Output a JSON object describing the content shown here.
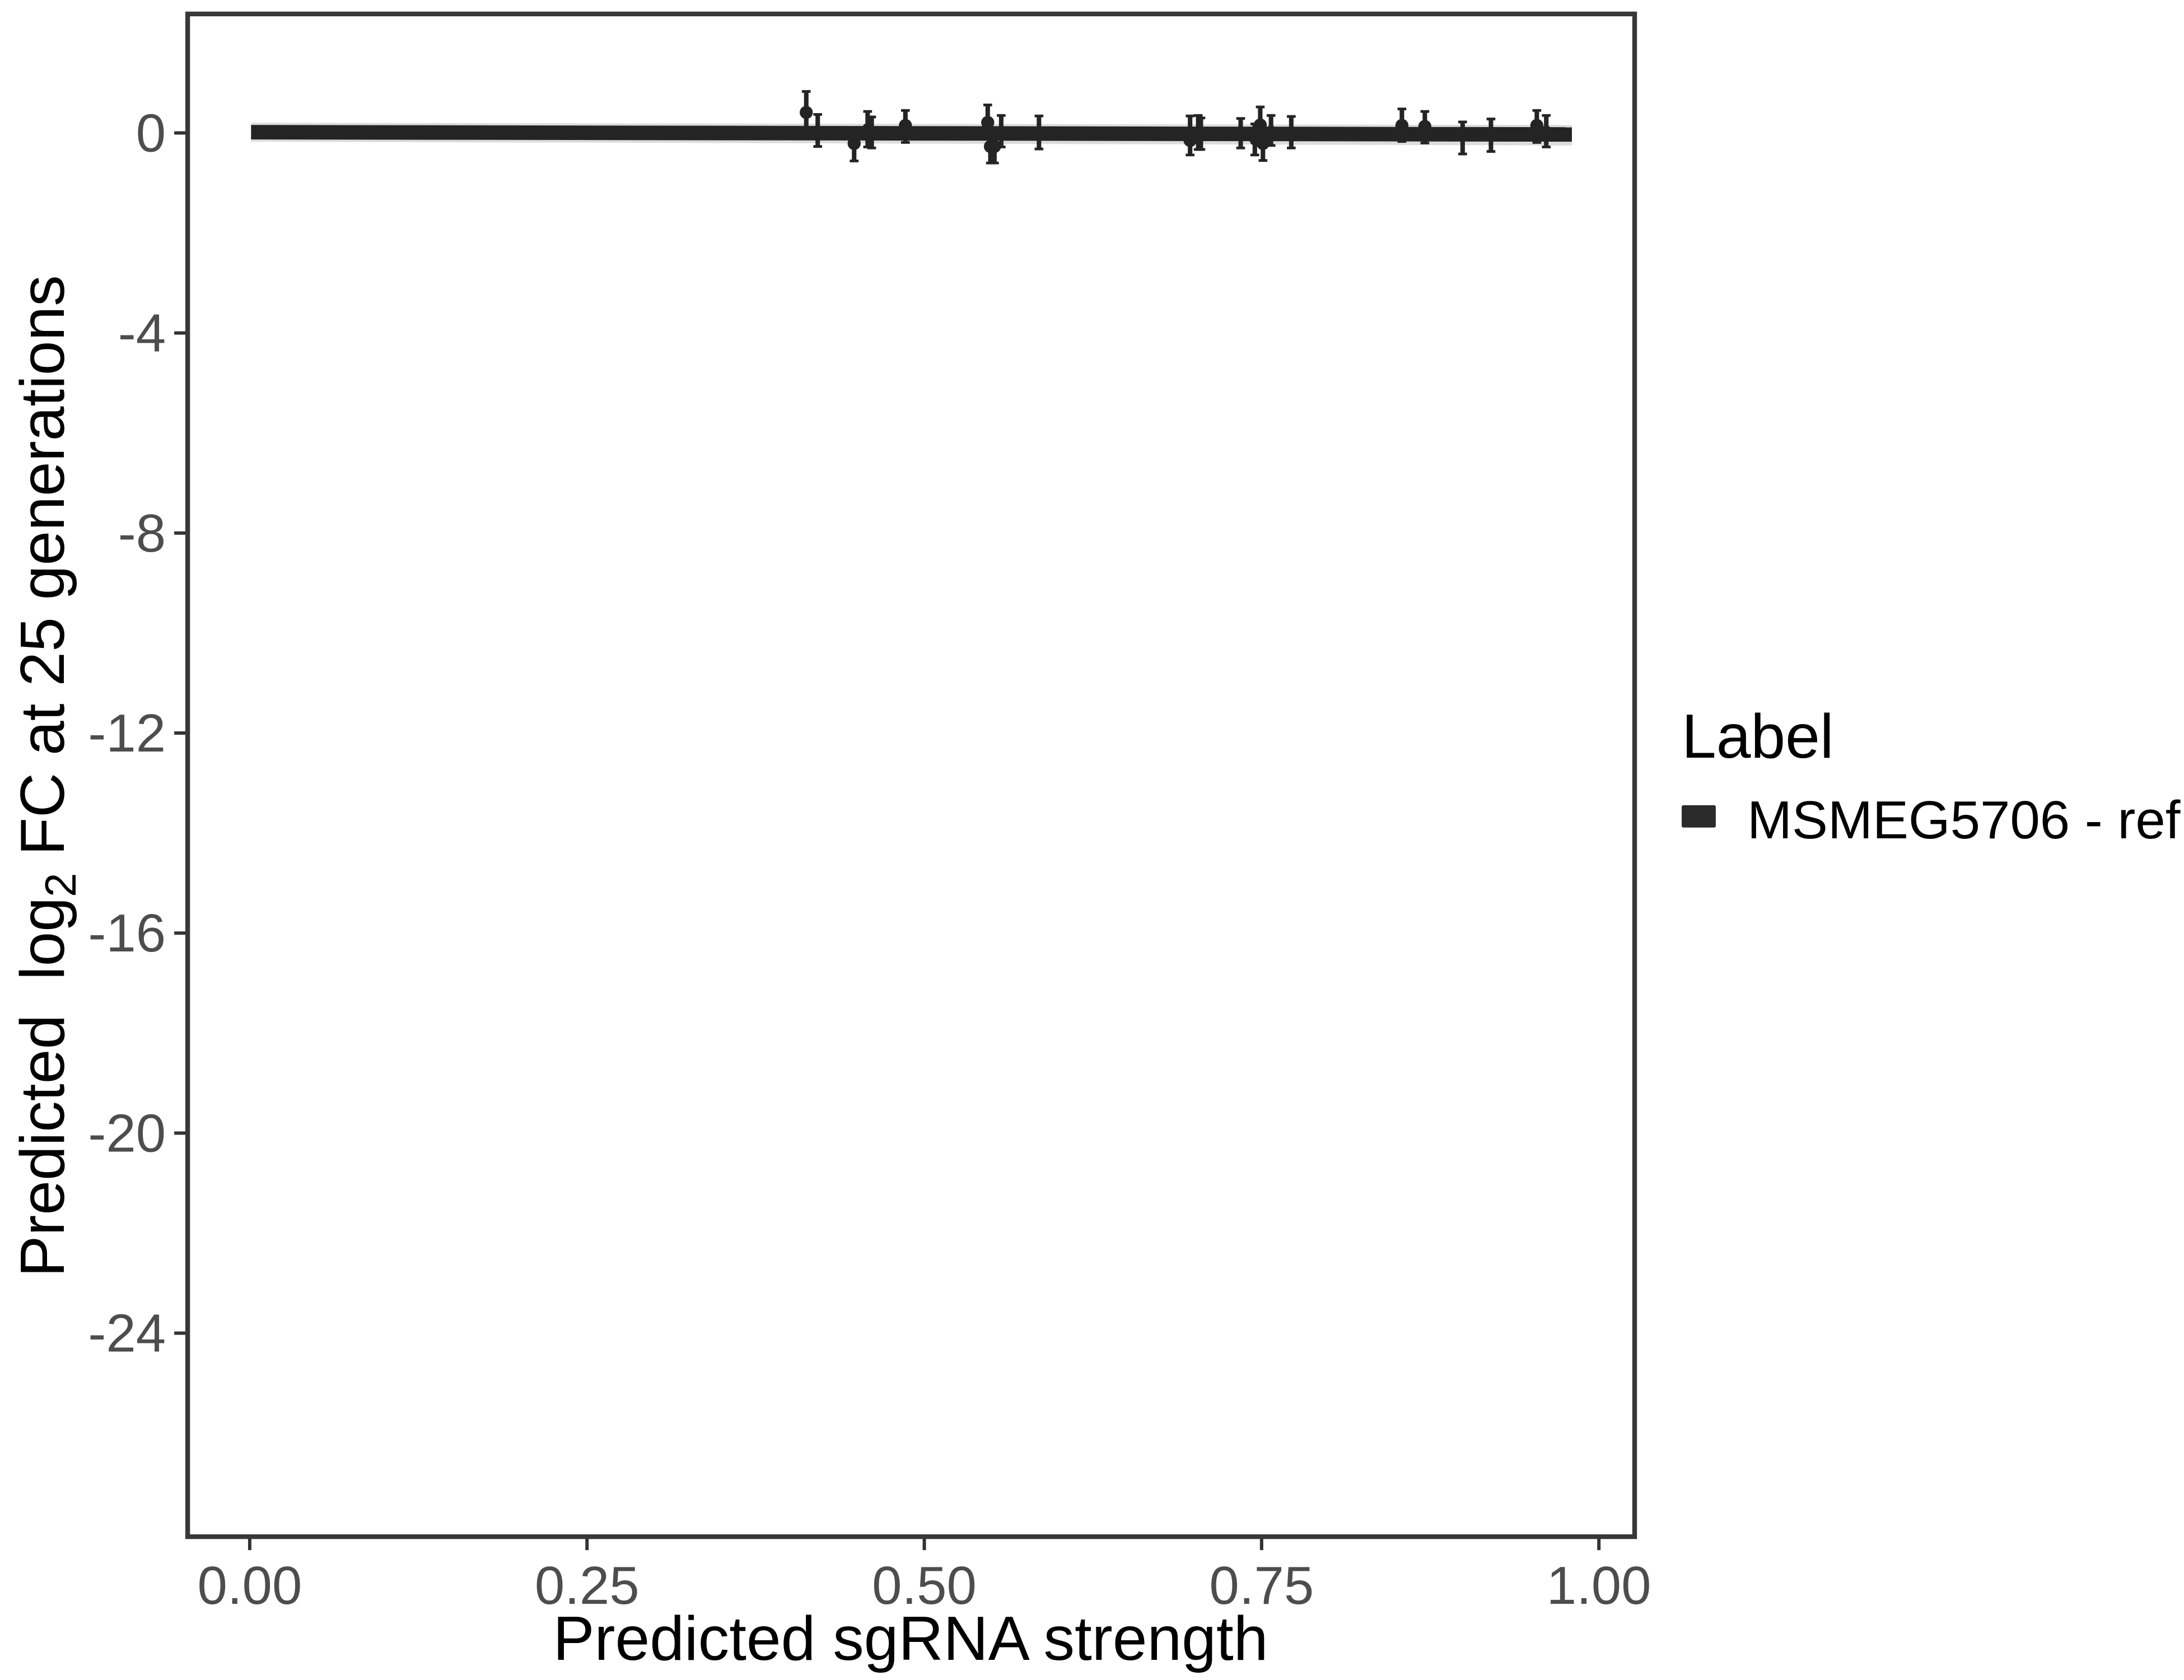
{
  "chart_data": {
    "type": "scatter",
    "title": "",
    "xlabel": "Predicted sgRNA strength",
    "ylabel_prefix": "Predicted  log",
    "ylabel_sub": "2",
    "ylabel_suffix": " FC at 25 generations",
    "xlim": [
      -0.046,
      1.0265
    ],
    "ylim": [
      -28.07,
      2.38
    ],
    "grid": "off",
    "x_ticks": [
      {
        "v": 0.0,
        "label": "0.00"
      },
      {
        "v": 0.25,
        "label": "0.25"
      },
      {
        "v": 0.5,
        "label": "0.50"
      },
      {
        "v": 0.75,
        "label": "0.75"
      },
      {
        "v": 1.0,
        "label": "1.00"
      }
    ],
    "y_ticks": [
      {
        "v": 0,
        "label": "0"
      },
      {
        "v": -4,
        "label": "-4"
      },
      {
        "v": -8,
        "label": "-8"
      },
      {
        "v": -12,
        "label": "-12"
      },
      {
        "v": -16,
        "label": "-16"
      },
      {
        "v": -20,
        "label": "-20"
      },
      {
        "v": -24,
        "label": "-24"
      }
    ],
    "legend": {
      "title": "Label",
      "position": "right",
      "entries": [
        {
          "label": "MSMEG5706 - ref",
          "swatch_color": "#2b2b2b"
        }
      ]
    },
    "smooth_line": {
      "x": [
        0.001,
        0.98
      ],
      "y": [
        0.015,
        -0.03
      ],
      "width_units": 0.29,
      "color": "#242424"
    },
    "ribbon": {
      "half_width_units": 0.19,
      "color": "#dcdcdc"
    },
    "series": [
      {
        "name": "MSMEG5706 - ref",
        "geom": "pointrange",
        "color": "#242424",
        "points": [
          {
            "x": 0.4125,
            "y": 0.41,
            "lo": -0.05,
            "hi": 0.83,
            "dot": true
          },
          {
            "x": 0.421,
            "y": 0.05,
            "lo": -0.27,
            "hi": 0.37,
            "dot": false
          },
          {
            "x": 0.448,
            "y": -0.21,
            "lo": -0.56,
            "hi": 0.08,
            "dot": true
          },
          {
            "x": 0.458,
            "y": 0.1,
            "lo": -0.28,
            "hi": 0.43,
            "dot": false
          },
          {
            "x": 0.461,
            "y": 0.02,
            "lo": -0.3,
            "hi": 0.32,
            "dot": false
          },
          {
            "x": 0.486,
            "y": 0.15,
            "lo": -0.19,
            "hi": 0.45,
            "dot": true
          },
          {
            "x": 0.547,
            "y": 0.21,
            "lo": -0.1,
            "hi": 0.56,
            "dot": true
          },
          {
            "x": 0.549,
            "y": -0.27,
            "lo": -0.6,
            "hi": 0.05,
            "dot": true
          },
          {
            "x": 0.552,
            "y": -0.27,
            "lo": -0.6,
            "hi": 0.02,
            "dot": true
          },
          {
            "x": 0.557,
            "y": 0.02,
            "lo": -0.28,
            "hi": 0.35,
            "dot": false
          },
          {
            "x": 0.585,
            "y": 0.0,
            "lo": -0.32,
            "hi": 0.34,
            "dot": false
          },
          {
            "x": 0.697,
            "y": -0.15,
            "lo": -0.44,
            "hi": 0.34,
            "dot": true
          },
          {
            "x": 0.703,
            "y": 0.0,
            "lo": -0.33,
            "hi": 0.35,
            "dot": false
          },
          {
            "x": 0.705,
            "y": -0.05,
            "lo": -0.33,
            "hi": 0.3,
            "dot": false
          },
          {
            "x": 0.7345,
            "y": 0.0,
            "lo": -0.3,
            "hi": 0.29,
            "dot": false
          },
          {
            "x": 0.745,
            "y": -0.15,
            "lo": -0.44,
            "hi": 0.18,
            "dot": false
          },
          {
            "x": 0.749,
            "y": 0.16,
            "lo": -0.2,
            "hi": 0.52,
            "dot": true
          },
          {
            "x": 0.751,
            "y": -0.21,
            "lo": -0.55,
            "hi": 0.05,
            "dot": true
          },
          {
            "x": 0.757,
            "y": 0.05,
            "lo": -0.25,
            "hi": 0.35,
            "dot": false
          },
          {
            "x": 0.772,
            "y": 0.0,
            "lo": -0.3,
            "hi": 0.33,
            "dot": false
          },
          {
            "x": 0.854,
            "y": 0.15,
            "lo": -0.17,
            "hi": 0.48,
            "dot": true
          },
          {
            "x": 0.871,
            "y": 0.13,
            "lo": -0.2,
            "hi": 0.43,
            "dot": true
          },
          {
            "x": 0.899,
            "y": -0.08,
            "lo": -0.42,
            "hi": 0.22,
            "dot": false
          },
          {
            "x": 0.92,
            "y": -0.03,
            "lo": -0.37,
            "hi": 0.28,
            "dot": false
          },
          {
            "x": 0.954,
            "y": 0.15,
            "lo": -0.19,
            "hi": 0.45,
            "dot": true
          },
          {
            "x": 0.961,
            "y": 0.05,
            "lo": -0.28,
            "hi": 0.35,
            "dot": false
          }
        ]
      }
    ],
    "colors": {
      "panel_border": "#383838",
      "tick_mark": "#333333",
      "tick_label": "#4d4d4d",
      "data": "#242424",
      "ribbon": "#dcdcdc",
      "background": "#ffffff"
    }
  }
}
